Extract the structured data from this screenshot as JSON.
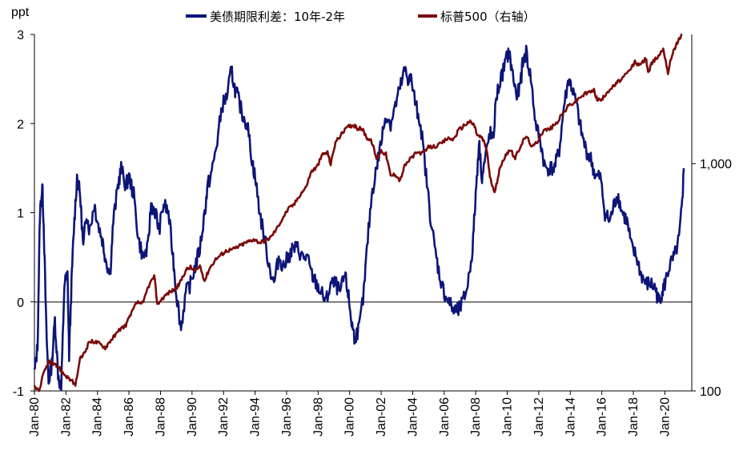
{
  "chart_data": {
    "type": "line",
    "unit_label": "ppt",
    "legend": [
      {
        "name": "美债期限利差：10年-2年",
        "color": "#0d1577"
      },
      {
        "name": "标普500（右轴）",
        "color": "#7b0a0a"
      }
    ],
    "y_left": {
      "ticks": [
        "3",
        "2",
        "1",
        "0",
        "-1"
      ],
      "range": [
        -1,
        3
      ]
    },
    "y_right": {
      "ticks": [
        "1,000",
        "100"
      ],
      "scale": "log",
      "range": [
        100,
        3700
      ]
    },
    "x_ticks": [
      "Jan-80",
      "Jan-82",
      "Jan-84",
      "Jan-86",
      "Jan-88",
      "Jan-90",
      "Jan-92",
      "Jan-94",
      "Jan-96",
      "Jan-98",
      "Jan-00",
      "Jan-02",
      "Jan-04",
      "Jan-06",
      "Jan-08",
      "Jan-10",
      "Jan-12",
      "Jan-14",
      "Jan-16",
      "Jan-18",
      "Jan-20"
    ],
    "x_range": [
      1980,
      2021.3
    ],
    "series": [
      {
        "name": "美债期限利差：10年-2年",
        "axis": "left",
        "color": "#0d1577",
        "points": [
          [
            1980.0,
            -0.8
          ],
          [
            1980.2,
            -0.5
          ],
          [
            1980.35,
            1.0
          ],
          [
            1980.5,
            1.3
          ],
          [
            1980.6,
            0.8
          ],
          [
            1980.75,
            -0.3
          ],
          [
            1980.9,
            -0.9
          ],
          [
            1981.1,
            -0.7
          ],
          [
            1981.3,
            -0.2
          ],
          [
            1981.5,
            -0.8
          ],
          [
            1981.7,
            -1.0
          ],
          [
            1981.9,
            0.2
          ],
          [
            1982.1,
            0.3
          ],
          [
            1982.2,
            -0.6
          ],
          [
            1982.35,
            0.2
          ],
          [
            1982.5,
            0.8
          ],
          [
            1982.7,
            1.4
          ],
          [
            1982.9,
            1.2
          ],
          [
            1983.1,
            0.6
          ],
          [
            1983.3,
            1.0
          ],
          [
            1983.5,
            0.8
          ],
          [
            1983.8,
            1.1
          ],
          [
            1984.0,
            0.9
          ],
          [
            1984.3,
            0.7
          ],
          [
            1984.5,
            0.5
          ],
          [
            1984.8,
            0.3
          ],
          [
            1985.0,
            0.9
          ],
          [
            1985.3,
            1.3
          ],
          [
            1985.5,
            1.5
          ],
          [
            1985.8,
            1.3
          ],
          [
            1986.0,
            1.4
          ],
          [
            1986.3,
            1.2
          ],
          [
            1986.6,
            0.7
          ],
          [
            1986.9,
            0.5
          ],
          [
            1987.2,
            0.6
          ],
          [
            1987.4,
            1.1
          ],
          [
            1987.7,
            1.0
          ],
          [
            1987.9,
            0.8
          ],
          [
            1988.2,
            1.1
          ],
          [
            1988.5,
            1.0
          ],
          [
            1988.8,
            0.5
          ],
          [
            1989.0,
            0.1
          ],
          [
            1989.3,
            -0.3
          ],
          [
            1989.6,
            0.1
          ],
          [
            1989.9,
            0.2
          ],
          [
            1990.2,
            0.4
          ],
          [
            1990.5,
            0.6
          ],
          [
            1990.8,
            1.0
          ],
          [
            1991.0,
            1.3
          ],
          [
            1991.3,
            1.5
          ],
          [
            1991.6,
            1.8
          ],
          [
            1991.9,
            2.2
          ],
          [
            1992.2,
            2.3
          ],
          [
            1992.5,
            2.6
          ],
          [
            1992.7,
            2.4
          ],
          [
            1992.9,
            2.3
          ],
          [
            1993.2,
            2.1
          ],
          [
            1993.5,
            2.0
          ],
          [
            1993.8,
            1.6
          ],
          [
            1994.0,
            1.4
          ],
          [
            1994.3,
            1.0
          ],
          [
            1994.6,
            0.7
          ],
          [
            1994.9,
            0.4
          ],
          [
            1995.2,
            0.2
          ],
          [
            1995.5,
            0.5
          ],
          [
            1995.8,
            0.4
          ],
          [
            1996.1,
            0.5
          ],
          [
            1996.4,
            0.6
          ],
          [
            1996.7,
            0.6
          ],
          [
            1997.0,
            0.5
          ],
          [
            1997.3,
            0.5
          ],
          [
            1997.6,
            0.3
          ],
          [
            1997.9,
            0.2
          ],
          [
            1998.2,
            0.1
          ],
          [
            1998.5,
            0.0
          ],
          [
            1998.8,
            0.2
          ],
          [
            1999.1,
            0.2
          ],
          [
            1999.4,
            0.1
          ],
          [
            1999.7,
            0.3
          ],
          [
            1999.9,
            0.1
          ],
          [
            2000.1,
            -0.2
          ],
          [
            2000.3,
            -0.4
          ],
          [
            2000.6,
            -0.3
          ],
          [
            2000.9,
            0.1
          ],
          [
            2001.1,
            0.6
          ],
          [
            2001.4,
            1.2
          ],
          [
            2001.7,
            1.5
          ],
          [
            2002.0,
            1.8
          ],
          [
            2002.3,
            2.1
          ],
          [
            2002.6,
            2.0
          ],
          [
            2002.9,
            2.2
          ],
          [
            2003.2,
            2.4
          ],
          [
            2003.5,
            2.6
          ],
          [
            2003.7,
            2.5
          ],
          [
            2003.9,
            2.5
          ],
          [
            2004.2,
            2.2
          ],
          [
            2004.5,
            2.0
          ],
          [
            2004.8,
            1.5
          ],
          [
            2005.1,
            1.0
          ],
          [
            2005.4,
            0.6
          ],
          [
            2005.7,
            0.3
          ],
          [
            2006.0,
            0.1
          ],
          [
            2006.3,
            0.0
          ],
          [
            2006.6,
            -0.1
          ],
          [
            2006.9,
            -0.1
          ],
          [
            2007.2,
            0.0
          ],
          [
            2007.5,
            0.2
          ],
          [
            2007.8,
            0.6
          ],
          [
            2008.0,
            1.2
          ],
          [
            2008.2,
            1.8
          ],
          [
            2008.4,
            1.4
          ],
          [
            2008.6,
            1.6
          ],
          [
            2008.9,
            1.9
          ],
          [
            2009.1,
            1.8
          ],
          [
            2009.3,
            2.3
          ],
          [
            2009.6,
            2.5
          ],
          [
            2009.9,
            2.7
          ],
          [
            2010.1,
            2.8
          ],
          [
            2010.3,
            2.6
          ],
          [
            2010.6,
            2.3
          ],
          [
            2010.8,
            2.4
          ],
          [
            2011.0,
            2.7
          ],
          [
            2011.2,
            2.8
          ],
          [
            2011.5,
            2.5
          ],
          [
            2011.8,
            2.0
          ],
          [
            2012.1,
            1.8
          ],
          [
            2012.4,
            1.5
          ],
          [
            2012.7,
            1.5
          ],
          [
            2013.0,
            1.5
          ],
          [
            2013.3,
            1.7
          ],
          [
            2013.6,
            2.2
          ],
          [
            2013.9,
            2.5
          ],
          [
            2014.1,
            2.4
          ],
          [
            2014.4,
            2.2
          ],
          [
            2014.7,
            1.9
          ],
          [
            2015.0,
            1.7
          ],
          [
            2015.3,
            1.6
          ],
          [
            2015.6,
            1.4
          ],
          [
            2015.9,
            1.4
          ],
          [
            2016.2,
            1.0
          ],
          [
            2016.5,
            0.9
          ],
          [
            2016.8,
            1.1
          ],
          [
            2017.0,
            1.2
          ],
          [
            2017.3,
            1.0
          ],
          [
            2017.6,
            0.9
          ],
          [
            2017.9,
            0.6
          ],
          [
            2018.2,
            0.5
          ],
          [
            2018.5,
            0.3
          ],
          [
            2018.8,
            0.2
          ],
          [
            2019.1,
            0.2
          ],
          [
            2019.4,
            0.15
          ],
          [
            2019.6,
            0.0
          ],
          [
            2019.8,
            0.1
          ],
          [
            2020.0,
            0.2
          ],
          [
            2020.3,
            0.4
          ],
          [
            2020.6,
            0.5
          ],
          [
            2020.9,
            0.7
          ],
          [
            2021.1,
            1.1
          ],
          [
            2021.2,
            1.5
          ]
        ]
      },
      {
        "name": "标普500（右轴）",
        "axis": "right",
        "color": "#7b0a0a",
        "points": [
          [
            1980.0,
            105
          ],
          [
            1980.3,
            100
          ],
          [
            1980.6,
            120
          ],
          [
            1980.9,
            135
          ],
          [
            1981.2,
            130
          ],
          [
            1981.5,
            128
          ],
          [
            1981.8,
            120
          ],
          [
            1982.1,
            115
          ],
          [
            1982.4,
            110
          ],
          [
            1982.6,
            105
          ],
          [
            1982.9,
            138
          ],
          [
            1983.2,
            148
          ],
          [
            1983.5,
            165
          ],
          [
            1983.8,
            165
          ],
          [
            1984.1,
            162
          ],
          [
            1984.5,
            155
          ],
          [
            1984.8,
            166
          ],
          [
            1985.1,
            175
          ],
          [
            1985.5,
            188
          ],
          [
            1985.8,
            195
          ],
          [
            1986.1,
            215
          ],
          [
            1986.5,
            245
          ],
          [
            1986.9,
            242
          ],
          [
            1987.2,
            285
          ],
          [
            1987.6,
            320
          ],
          [
            1987.8,
            240
          ],
          [
            1988.1,
            255
          ],
          [
            1988.5,
            270
          ],
          [
            1988.9,
            280
          ],
          [
            1989.2,
            295
          ],
          [
            1989.6,
            340
          ],
          [
            1989.9,
            350
          ],
          [
            1990.2,
            335
          ],
          [
            1990.5,
            355
          ],
          [
            1990.8,
            305
          ],
          [
            1991.1,
            345
          ],
          [
            1991.5,
            380
          ],
          [
            1991.9,
            400
          ],
          [
            1992.2,
            415
          ],
          [
            1992.6,
            420
          ],
          [
            1992.9,
            430
          ],
          [
            1993.3,
            445
          ],
          [
            1993.6,
            455
          ],
          [
            1993.9,
            465
          ],
          [
            1994.3,
            450
          ],
          [
            1994.7,
            460
          ],
          [
            1995.0,
            475
          ],
          [
            1995.4,
            520
          ],
          [
            1995.8,
            585
          ],
          [
            1996.1,
            630
          ],
          [
            1996.5,
            665
          ],
          [
            1996.9,
            740
          ],
          [
            1997.2,
            780
          ],
          [
            1997.6,
            930
          ],
          [
            1997.9,
            960
          ],
          [
            1998.3,
            1100
          ],
          [
            1998.6,
            1120
          ],
          [
            1998.8,
            990
          ],
          [
            1999.1,
            1240
          ],
          [
            1999.5,
            1350
          ],
          [
            1999.9,
            1450
          ],
          [
            2000.2,
            1480
          ],
          [
            2000.5,
            1430
          ],
          [
            2000.8,
            1420
          ],
          [
            2001.1,
            1300
          ],
          [
            2001.4,
            1250
          ],
          [
            2001.7,
            1050
          ],
          [
            2002.0,
            1140
          ],
          [
            2002.3,
            1100
          ],
          [
            2002.6,
            880
          ],
          [
            2002.9,
            900
          ],
          [
            2003.2,
            840
          ],
          [
            2003.5,
            980
          ],
          [
            2003.9,
            1060
          ],
          [
            2004.3,
            1120
          ],
          [
            2004.7,
            1110
          ],
          [
            2005.0,
            1180
          ],
          [
            2005.4,
            1190
          ],
          [
            2005.8,
            1220
          ],
          [
            2006.2,
            1290
          ],
          [
            2006.6,
            1280
          ],
          [
            2006.9,
            1400
          ],
          [
            2007.3,
            1480
          ],
          [
            2007.6,
            1530
          ],
          [
            2007.9,
            1480
          ],
          [
            2008.1,
            1330
          ],
          [
            2008.4,
            1300
          ],
          [
            2008.7,
            1150
          ],
          [
            2008.9,
            870
          ],
          [
            2009.2,
            735
          ],
          [
            2009.5,
            930
          ],
          [
            2009.9,
            1100
          ],
          [
            2010.2,
            1150
          ],
          [
            2010.5,
            1050
          ],
          [
            2010.9,
            1220
          ],
          [
            2011.2,
            1320
          ],
          [
            2011.6,
            1180
          ],
          [
            2011.9,
            1250
          ],
          [
            2012.3,
            1400
          ],
          [
            2012.7,
            1420
          ],
          [
            2013.1,
            1500
          ],
          [
            2013.5,
            1650
          ],
          [
            2013.9,
            1800
          ],
          [
            2014.3,
            1870
          ],
          [
            2014.7,
            1980
          ],
          [
            2015.1,
            2050
          ],
          [
            2015.5,
            2100
          ],
          [
            2015.7,
            1920
          ],
          [
            2016.0,
            1900
          ],
          [
            2016.3,
            2060
          ],
          [
            2016.7,
            2170
          ],
          [
            2017.0,
            2280
          ],
          [
            2017.4,
            2400
          ],
          [
            2017.8,
            2580
          ],
          [
            2018.1,
            2800
          ],
          [
            2018.4,
            2700
          ],
          [
            2018.8,
            2900
          ],
          [
            2018.95,
            2500
          ],
          [
            2019.2,
            2780
          ],
          [
            2019.6,
            2980
          ],
          [
            2019.9,
            3200
          ],
          [
            2020.2,
            2500
          ],
          [
            2020.5,
            3100
          ],
          [
            2020.8,
            3400
          ],
          [
            2021.1,
            3750
          ]
        ]
      }
    ]
  }
}
